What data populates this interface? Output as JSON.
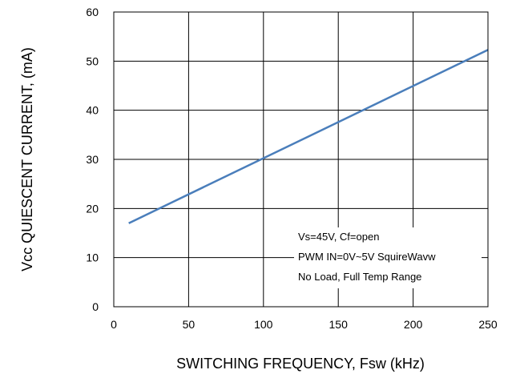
{
  "chart_data": {
    "type": "line",
    "title": "",
    "xlabel": "SWITCHING FREQUENCY, Fsw (kHz)",
    "ylabel": "Vcc QUIESCENT CURRENT, (mA)",
    "xlim": [
      0,
      250
    ],
    "ylim": [
      0,
      60
    ],
    "xticks": [
      0,
      50,
      100,
      150,
      200,
      250
    ],
    "yticks": [
      0,
      10,
      20,
      30,
      40,
      50,
      60
    ],
    "grid": true,
    "series": [
      {
        "color": "#4a7ebb",
        "x": [
          10,
          250
        ],
        "y": [
          17,
          52.3
        ]
      }
    ],
    "annotations": [
      "Vs=45V,  Cf=open",
      "PWM IN=0V~5V SquireWavw",
      "No Load, Full Temp Range"
    ]
  }
}
